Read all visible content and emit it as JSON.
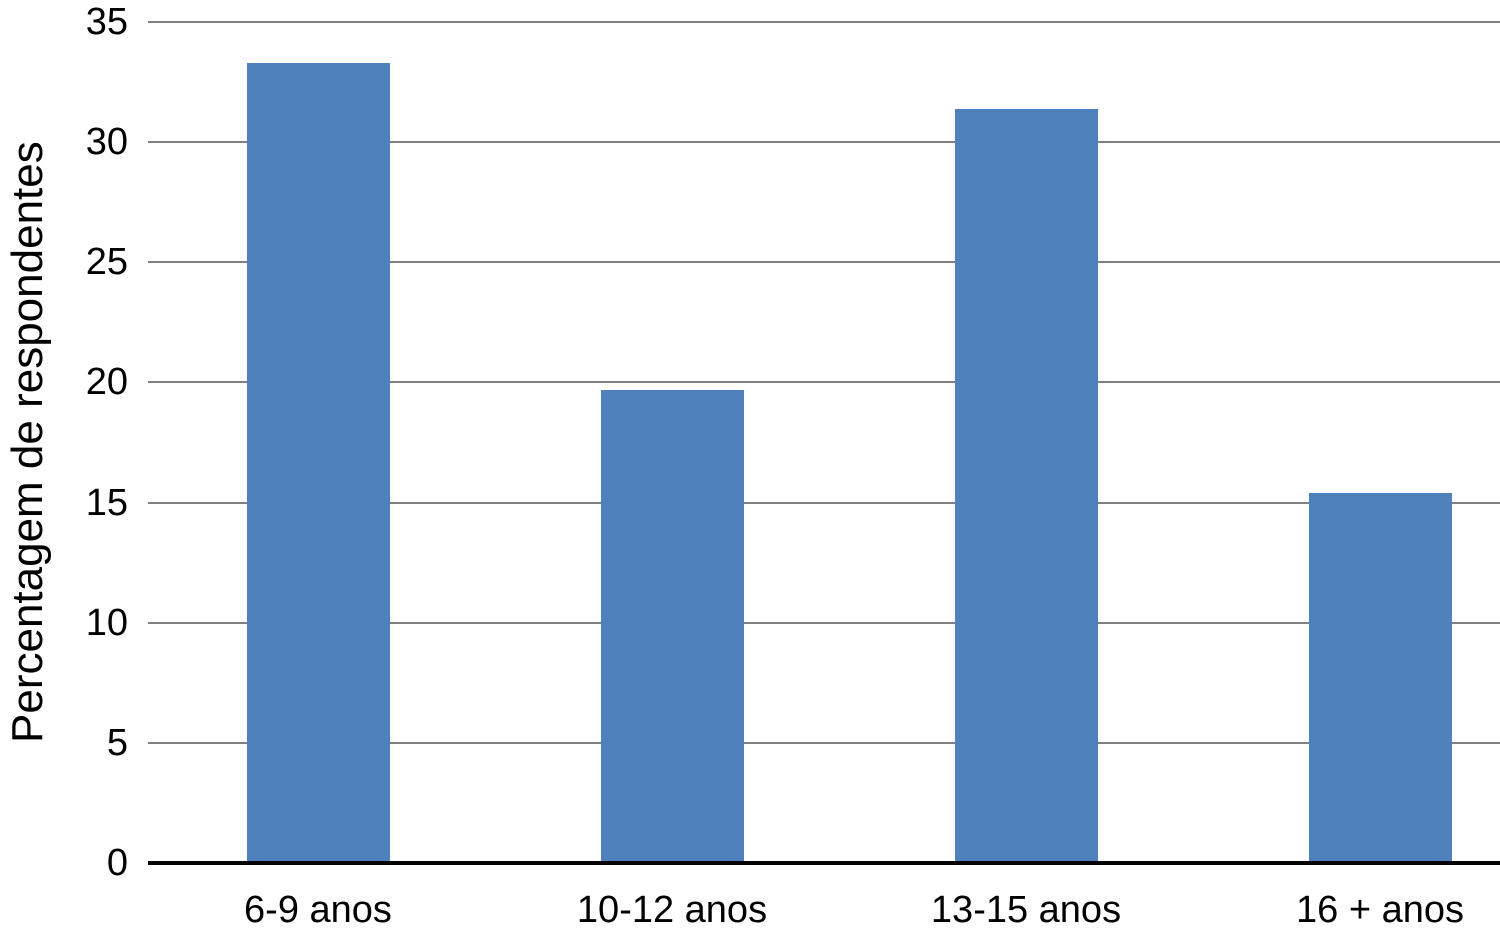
{
  "chart_data": {
    "type": "bar",
    "categories": [
      "6-9 anos",
      "10-12 anos",
      "13-15 anos",
      "16 + anos"
    ],
    "values": [
      33.3,
      19.7,
      31.4,
      15.4
    ],
    "title": "",
    "xlabel": "",
    "ylabel": "Percentagem de respondentes",
    "ylim": [
      0,
      35
    ],
    "yticks": [
      0,
      5,
      10,
      15,
      20,
      25,
      30,
      35
    ],
    "grid": true,
    "legend": "none",
    "colors": {
      "bar": "#4E80BC",
      "gridline": "#808080",
      "axis_line": "#000000",
      "text": "#000000",
      "background": "#FFFFFF"
    }
  }
}
